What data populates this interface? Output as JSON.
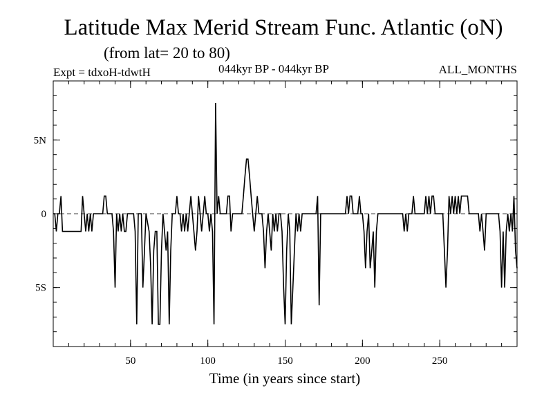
{
  "chart_data": {
    "type": "line",
    "title": "Latitude Max Merid Stream Func. Atlantic (oN)",
    "subtitle": "(from lat= 20 to 80)",
    "expt": "Expt = tdxoH-tdwtH",
    "period": "044kyr BP - 044kyr BP",
    "months": "ALL_MONTHS",
    "xlabel": "Time (in years since start)",
    "ylabel": "",
    "xlim": [
      0,
      300
    ],
    "ylim": [
      -9,
      9
    ],
    "xticks": [
      50,
      100,
      150,
      200,
      250
    ],
    "yticks": [
      {
        "value": 5,
        "label": "5N"
      },
      {
        "value": 0,
        "label": "0"
      },
      {
        "value": -5,
        "label": "5S"
      }
    ],
    "zero_line": "dashed",
    "series": [
      {
        "color": "#000000",
        "points": [
          [
            0,
            0
          ],
          [
            1,
            0
          ],
          [
            2,
            -1.2
          ],
          [
            3,
            0
          ],
          [
            4,
            0
          ],
          [
            5,
            1.2
          ],
          [
            6,
            -1.2
          ],
          [
            10,
            -1.2
          ],
          [
            15,
            -1.2
          ],
          [
            18,
            -1.2
          ],
          [
            19,
            1.2
          ],
          [
            20,
            0
          ],
          [
            21,
            -1.2
          ],
          [
            22,
            0
          ],
          [
            23,
            -1.2
          ],
          [
            24,
            0
          ],
          [
            25,
            -1.2
          ],
          [
            26,
            0
          ],
          [
            30,
            0
          ],
          [
            32,
            0
          ],
          [
            33,
            1.2
          ],
          [
            34,
            1.2
          ],
          [
            35,
            0
          ],
          [
            38,
            0
          ],
          [
            39,
            -1.2
          ],
          [
            40,
            -5
          ],
          [
            41,
            0
          ],
          [
            42,
            -1.2
          ],
          [
            43,
            0
          ],
          [
            44,
            -1.2
          ],
          [
            45,
            0
          ],
          [
            46,
            -1.2
          ],
          [
            47,
            -1.2
          ],
          [
            48,
            0
          ],
          [
            52,
            0
          ],
          [
            53,
            -1.2
          ],
          [
            54,
            -7.5
          ],
          [
            55,
            0
          ],
          [
            57,
            0
          ],
          [
            58,
            -5
          ],
          [
            59,
            -2.5
          ],
          [
            60,
            0
          ],
          [
            62,
            -1.2
          ],
          [
            63,
            -3.5
          ],
          [
            64,
            -7.5
          ],
          [
            65,
            -2.5
          ],
          [
            66,
            -1.2
          ],
          [
            67,
            -1.2
          ],
          [
            68,
            -7.5
          ],
          [
            69,
            -7.5
          ],
          [
            70,
            -2.5
          ],
          [
            71,
            0
          ],
          [
            72,
            -1.2
          ],
          [
            73,
            -2.5
          ],
          [
            74,
            -1.2
          ],
          [
            75,
            -7.5
          ],
          [
            76,
            -2.5
          ],
          [
            77,
            0
          ],
          [
            79,
            0
          ],
          [
            80,
            1.2
          ],
          [
            81,
            0
          ],
          [
            82,
            0
          ],
          [
            83,
            -1.2
          ],
          [
            84,
            0
          ],
          [
            85,
            -1.2
          ],
          [
            86,
            0
          ],
          [
            87,
            -1.2
          ],
          [
            88,
            0
          ],
          [
            89,
            1.2
          ],
          [
            90,
            0
          ],
          [
            91,
            -1.2
          ],
          [
            92,
            -2.5
          ],
          [
            93,
            -1.2
          ],
          [
            94,
            1.2
          ],
          [
            95,
            0
          ],
          [
            96,
            -1.2
          ],
          [
            97,
            0
          ],
          [
            98,
            1.2
          ],
          [
            99,
            0
          ],
          [
            100,
            0
          ],
          [
            101,
            -1.2
          ],
          [
            102,
            0
          ],
          [
            103,
            -1.2
          ],
          [
            104,
            -7.5
          ],
          [
            105,
            7.5
          ],
          [
            106,
            0
          ],
          [
            107,
            1.2
          ],
          [
            108,
            0
          ],
          [
            112,
            0
          ],
          [
            113,
            1.2
          ],
          [
            114,
            1.2
          ],
          [
            115,
            -1.2
          ],
          [
            116,
            0
          ],
          [
            118,
            0
          ],
          [
            119,
            0
          ],
          [
            120,
            0
          ],
          [
            122,
            0
          ],
          [
            123,
            1.2
          ],
          [
            124,
            2.5
          ],
          [
            125,
            3.7
          ],
          [
            126,
            3.7
          ],
          [
            127,
            2.5
          ],
          [
            128,
            1.2
          ],
          [
            129,
            0
          ],
          [
            130,
            -1.2
          ],
          [
            131,
            0
          ],
          [
            132,
            1.2
          ],
          [
            133,
            0
          ],
          [
            135,
            0
          ],
          [
            136,
            -1.2
          ],
          [
            137,
            -3.7
          ],
          [
            138,
            -1.2
          ],
          [
            139,
            0
          ],
          [
            140,
            -1.2
          ],
          [
            141,
            -2.5
          ],
          [
            142,
            0
          ],
          [
            143,
            -1.2
          ],
          [
            144,
            0
          ],
          [
            145,
            -1.2
          ],
          [
            146,
            0
          ],
          [
            147,
            0
          ],
          [
            148,
            -1.2
          ],
          [
            149,
            -5
          ],
          [
            150,
            -7.5
          ],
          [
            151,
            -2.5
          ],
          [
            152,
            0
          ],
          [
            153,
            -1.2
          ],
          [
            154,
            -7.5
          ],
          [
            155,
            -5
          ],
          [
            156,
            -2.5
          ],
          [
            157,
            0
          ],
          [
            158,
            -1.2
          ],
          [
            159,
            0
          ],
          [
            160,
            -1.2
          ],
          [
            161,
            0
          ],
          [
            163,
            0
          ],
          [
            170,
            0
          ],
          [
            171,
            1.2
          ],
          [
            172,
            -6.2
          ],
          [
            173,
            0
          ],
          [
            180,
            0
          ],
          [
            185,
            0
          ],
          [
            189,
            0
          ],
          [
            190,
            1.2
          ],
          [
            191,
            0
          ],
          [
            192,
            1.2
          ],
          [
            193,
            1.2
          ],
          [
            194,
            0
          ],
          [
            197,
            0
          ],
          [
            198,
            1.2
          ],
          [
            199,
            0
          ],
          [
            200,
            0
          ],
          [
            201,
            -1.2
          ],
          [
            202,
            -3.7
          ],
          [
            203,
            -1.2
          ],
          [
            204,
            0
          ],
          [
            205,
            -3.7
          ],
          [
            206,
            -2.5
          ],
          [
            207,
            -1.2
          ],
          [
            208,
            -5
          ],
          [
            209,
            -1.2
          ],
          [
            210,
            0
          ],
          [
            215,
            0
          ],
          [
            220,
            0
          ],
          [
            225,
            0
          ],
          [
            226,
            0
          ],
          [
            227,
            -1.2
          ],
          [
            228,
            0
          ],
          [
            229,
            -1.2
          ],
          [
            230,
            0
          ],
          [
            232,
            0
          ],
          [
            233,
            1.2
          ],
          [
            234,
            0
          ],
          [
            240,
            0
          ],
          [
            241,
            1.2
          ],
          [
            242,
            0
          ],
          [
            243,
            1.2
          ],
          [
            244,
            0
          ],
          [
            245,
            1.2
          ],
          [
            246,
            1.2
          ],
          [
            247,
            0
          ],
          [
            252,
            0
          ],
          [
            253,
            -2.5
          ],
          [
            254,
            -5
          ],
          [
            255,
            -2.5
          ],
          [
            256,
            1.2
          ],
          [
            257,
            0
          ],
          [
            258,
            1.2
          ],
          [
            259,
            0
          ],
          [
            260,
            1.2
          ],
          [
            261,
            0
          ],
          [
            262,
            1.2
          ],
          [
            263,
            0
          ],
          [
            264,
            1.2
          ],
          [
            268,
            1.2
          ],
          [
            269,
            0
          ],
          [
            270,
            0
          ],
          [
            275,
            0
          ],
          [
            276,
            -1.2
          ],
          [
            277,
            0
          ],
          [
            278,
            -1.2
          ],
          [
            279,
            -2.5
          ],
          [
            280,
            0
          ],
          [
            288,
            0
          ],
          [
            289,
            -1.2
          ],
          [
            290,
            -5
          ],
          [
            291,
            -1.2
          ],
          [
            292,
            -5
          ],
          [
            293,
            -1.2
          ],
          [
            294,
            0
          ],
          [
            295,
            -1.2
          ],
          [
            296,
            0
          ],
          [
            297,
            -1.2
          ],
          [
            298,
            1.2
          ],
          [
            299,
            -2.5
          ],
          [
            300,
            -3.7
          ]
        ]
      }
    ]
  }
}
